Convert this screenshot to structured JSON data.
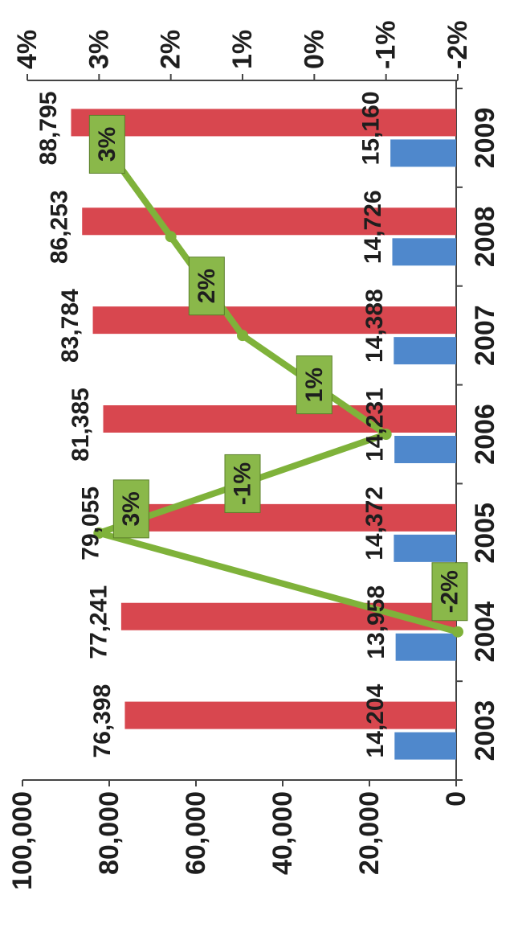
{
  "chart_data": {
    "type": "bar",
    "categories": [
      "2003",
      "2004",
      "2005",
      "2006",
      "2007",
      "2008",
      "2009"
    ],
    "series": [
      {
        "values": [
          76398,
          77241,
          79055,
          81385,
          83784,
          86253,
          88795
        ],
        "labels": [
          "76,398",
          "77,241",
          "79,055",
          "81,385",
          "83,784",
          "86,253",
          "88,795"
        ],
        "color": "#d8474f"
      },
      {
        "values": [
          14204,
          13958,
          14372,
          14231,
          14388,
          14726,
          15160
        ],
        "labels": [
          "14,204",
          "13,958",
          "14,372",
          "14,231",
          "14,388",
          "14,726",
          "15,160"
        ],
        "color": "#4f88cc"
      }
    ],
    "line_series": {
      "axis": "secondary",
      "x": [
        "2004",
        "2005",
        "2006",
        "2007",
        "2008",
        "2009"
      ],
      "values": [
        -2,
        3,
        -1,
        1,
        2,
        3
      ],
      "labels": [
        "-2%",
        "3%",
        "-1%",
        "1%",
        "2%",
        "3%"
      ],
      "color": "#7fb23a",
      "label_bg": "#8ab84a"
    },
    "primary_axis": {
      "range": [
        0,
        100000
      ],
      "ticks": [
        0,
        20000,
        40000,
        60000,
        80000,
        100000
      ],
      "tick_labels": [
        "0",
        "20,000",
        "40,000",
        "60,000",
        "80,000",
        "100,000"
      ]
    },
    "secondary_axis": {
      "range": [
        -2,
        4
      ],
      "ticks": [
        -2,
        -1,
        0,
        1,
        2,
        3,
        4
      ],
      "tick_labels": [
        "-2%",
        "-1%",
        "0%",
        "1%",
        "2%",
        "3%",
        "4%"
      ]
    },
    "orientation": "rotated-90-clockwise",
    "grid": false,
    "legend": "none"
  }
}
